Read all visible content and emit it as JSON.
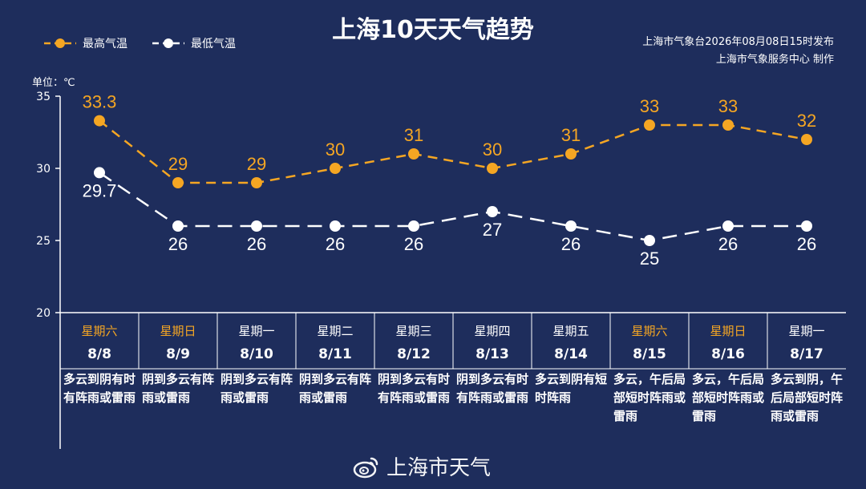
{
  "title": "上海10天天气趋势",
  "source_line1": "上海市气象台2026年08月08日15时发布",
  "source_line2": "上海市气象服务中心  制作",
  "unit_label": "单位：℃",
  "watermark": "上海市天气",
  "colors": {
    "background": "#1e2d5c",
    "high": "#f5a623",
    "low": "#ffffff",
    "weekend": "#f5a623"
  },
  "chart_data": {
    "type": "line",
    "ylim": [
      20,
      35
    ],
    "yticks": [
      20,
      25,
      30,
      35
    ],
    "categories": [
      "8/8",
      "8/9",
      "8/10",
      "8/11",
      "8/12",
      "8/13",
      "8/14",
      "8/15",
      "8/16",
      "8/17"
    ],
    "weekdays": [
      "星期六",
      "星期日",
      "星期一",
      "星期二",
      "星期三",
      "星期四",
      "星期五",
      "星期六",
      "星期日",
      "星期一"
    ],
    "weekend": [
      true,
      true,
      false,
      false,
      false,
      false,
      false,
      true,
      true,
      false
    ],
    "weather": [
      "多云到阴有时有阵雨或雷雨",
      "阴到多云有阵雨或雷雨",
      "阴到多云有阵雨或雷雨",
      "阴到多云有阵雨或雷雨",
      "阴到多云有时有阵雨或雷雨",
      "阴到多云有时有阵雨或雷雨",
      "多云到阴有短时阵雨",
      "多云，午后局部短时阵雨或雷雨",
      "多云，午后局部短时阵雨或雷雨",
      "多云到阴，午后局部短时阵雨或雷雨"
    ],
    "series": [
      {
        "name": "最高气温",
        "values": [
          "33.3",
          "29",
          "29",
          "30",
          "31",
          "30",
          "31",
          "33",
          "33",
          "32"
        ]
      },
      {
        "name": "最低气温",
        "values": [
          "29.7",
          "26",
          "26",
          "26",
          "26",
          "27",
          "26",
          "25",
          "26",
          "26"
        ]
      }
    ]
  }
}
